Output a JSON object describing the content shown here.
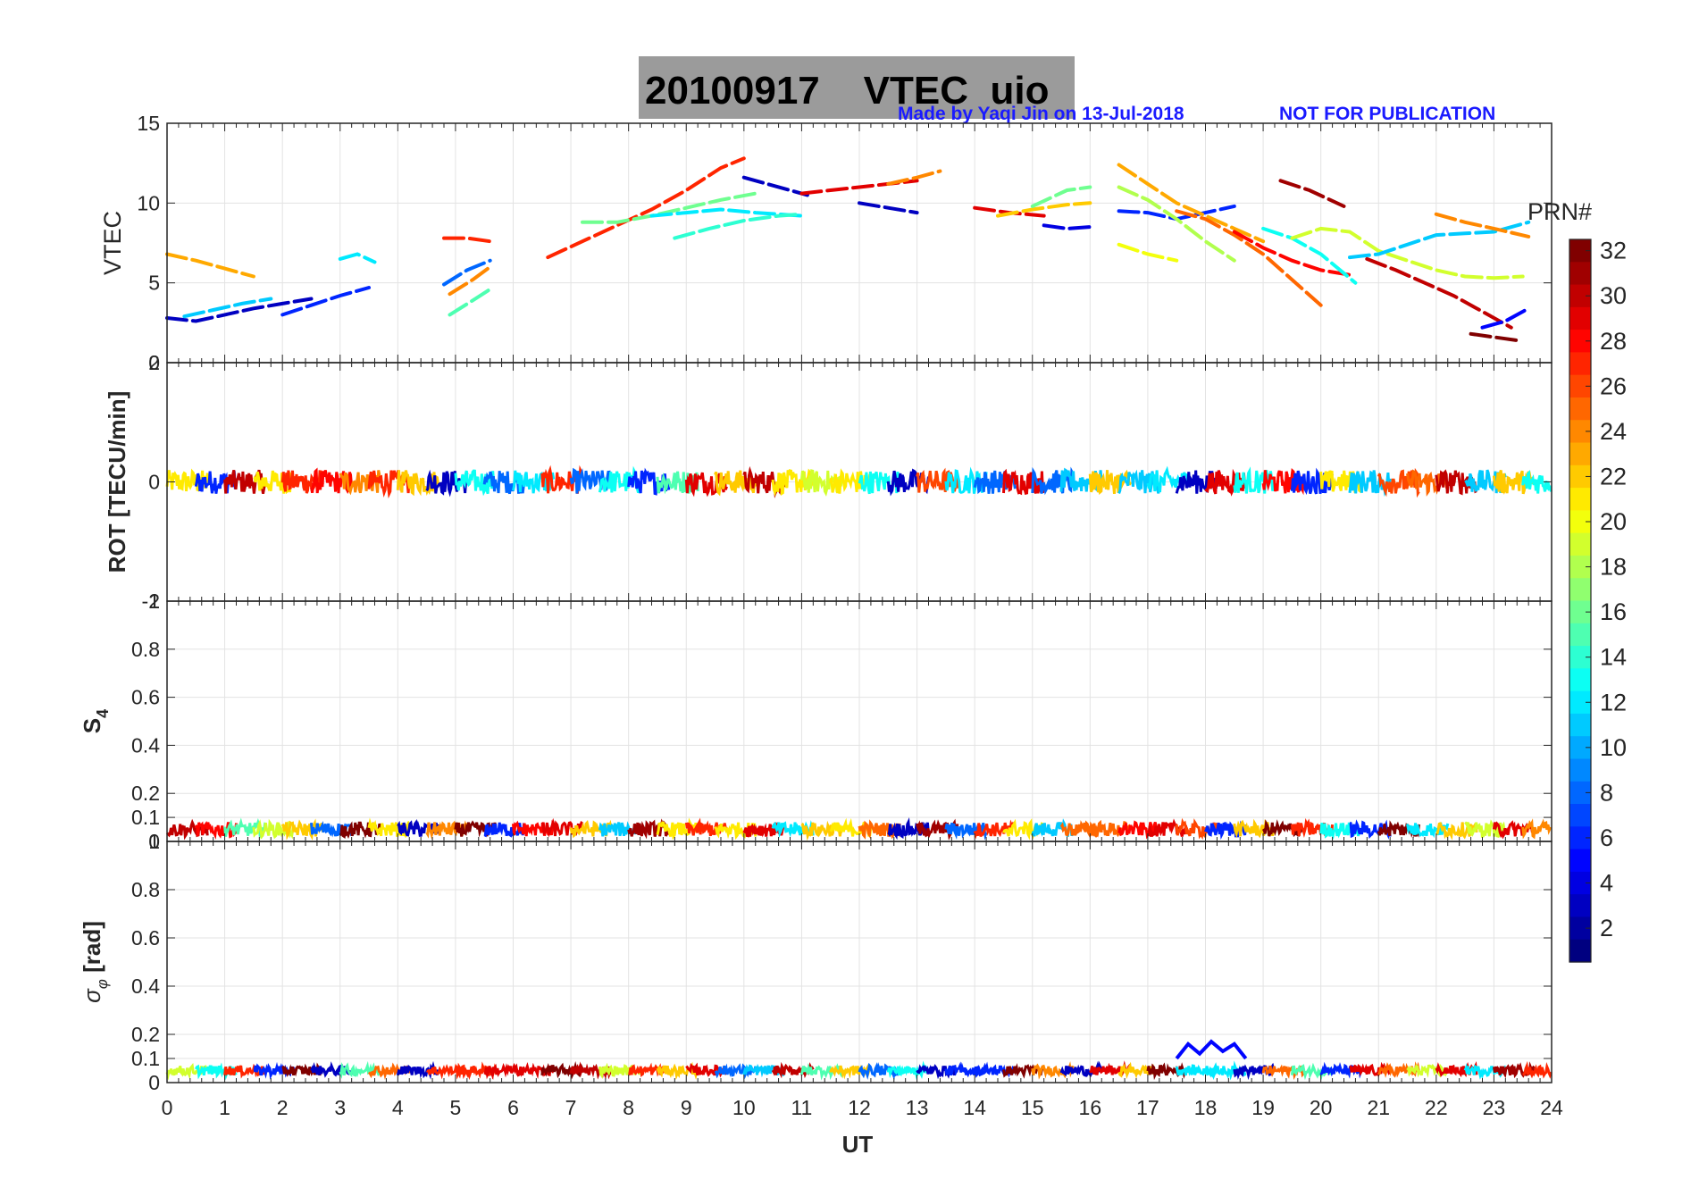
{
  "colors": {
    "note": "#1a1aff",
    "title_box": "#9b9b9b",
    "grid": "#e3e3e3",
    "axis": "#262626"
  },
  "chart_data": [
    {
      "type": "line",
      "title": "20100917    VTEC  uio",
      "annotation": "Made by Yaqi Jin on 13-Jul-2018",
      "watermark": "NOT FOR PUBLICATION",
      "ylabel": "VTEC",
      "xlim": [
        0,
        24
      ],
      "ylim": [
        0,
        15
      ],
      "yticks": [
        "0",
        "5",
        "10",
        "15"
      ],
      "series_note": "Vertical TEC arcs per GPS satellite (PRN), colored by PRN",
      "series": [
        {
          "prn": 3,
          "x": [
            0.0,
            0.5,
            1.0,
            1.5,
            2.0,
            2.5
          ],
          "y": [
            2.8,
            2.6,
            3.0,
            3.4,
            3.7,
            4.0
          ]
        },
        {
          "prn": 11,
          "x": [
            0.3,
            0.8,
            1.3,
            1.8
          ],
          "y": [
            2.9,
            3.3,
            3.7,
            4.0
          ]
        },
        {
          "prn": 23,
          "x": [
            0.0,
            0.5,
            1.0,
            1.5
          ],
          "y": [
            6.8,
            6.4,
            5.9,
            5.4
          ]
        },
        {
          "prn": 6,
          "x": [
            2.0,
            2.5,
            3.0,
            3.5
          ],
          "y": [
            3.0,
            3.6,
            4.2,
            4.7
          ]
        },
        {
          "prn": 12,
          "x": [
            3.0,
            3.3,
            3.6
          ],
          "y": [
            6.5,
            6.8,
            6.3
          ]
        },
        {
          "prn": 8,
          "x": [
            4.8,
            5.2,
            5.6
          ],
          "y": [
            4.9,
            5.8,
            6.4
          ]
        },
        {
          "prn": 27,
          "x": [
            4.8,
            5.2,
            5.6
          ],
          "y": [
            7.8,
            7.8,
            7.6
          ]
        },
        {
          "prn": 24,
          "x": [
            4.9,
            5.3,
            5.6
          ],
          "y": [
            4.3,
            5.2,
            6.0
          ]
        },
        {
          "prn": 15,
          "x": [
            4.9,
            5.3,
            5.6
          ],
          "y": [
            3.0,
            3.9,
            4.6
          ]
        },
        {
          "prn": 27,
          "x": [
            6.6,
            7.2,
            7.8,
            8.4,
            9.0,
            9.6,
            10.0
          ],
          "y": [
            6.6,
            7.6,
            8.6,
            9.6,
            10.8,
            12.2,
            12.8
          ]
        },
        {
          "prn": 16,
          "x": [
            7.2,
            7.8,
            8.4,
            9.0,
            9.6,
            10.2
          ],
          "y": [
            8.8,
            8.8,
            9.2,
            9.7,
            10.2,
            10.6
          ]
        },
        {
          "prn": 12,
          "x": [
            8.4,
            9.0,
            9.6,
            10.2,
            11.0
          ],
          "y": [
            9.2,
            9.4,
            9.6,
            9.4,
            9.2
          ]
        },
        {
          "prn": 14,
          "x": [
            8.8,
            9.4,
            10.0,
            10.6,
            11.0
          ],
          "y": [
            7.8,
            8.4,
            8.9,
            9.2,
            9.3
          ]
        },
        {
          "prn": 3,
          "x": [
            10.0,
            10.4,
            10.8,
            11.1
          ],
          "y": [
            11.6,
            11.2,
            10.8,
            10.5
          ]
        },
        {
          "prn": 29,
          "x": [
            11.0,
            11.5,
            12.0,
            12.5,
            13.0
          ],
          "y": [
            10.6,
            10.8,
            11.0,
            11.2,
            11.4
          ]
        },
        {
          "prn": 24,
          "x": [
            12.5,
            13.0,
            13.4
          ],
          "y": [
            11.2,
            11.6,
            12.0
          ]
        },
        {
          "prn": 3,
          "x": [
            12.0,
            12.5,
            13.0
          ],
          "y": [
            10.0,
            9.7,
            9.4
          ]
        },
        {
          "prn": 29,
          "x": [
            14.0,
            14.6,
            15.2
          ],
          "y": [
            9.7,
            9.4,
            9.2
          ]
        },
        {
          "prn": 22,
          "x": [
            14.4,
            15.0,
            15.6,
            16.0
          ],
          "y": [
            9.2,
            9.6,
            9.9,
            10.0
          ]
        },
        {
          "prn": 16,
          "x": [
            15.0,
            15.6,
            16.0
          ],
          "y": [
            9.8,
            10.8,
            11.0
          ]
        },
        {
          "prn": 4,
          "x": [
            15.2,
            15.6,
            16.0
          ],
          "y": [
            8.6,
            8.4,
            8.5
          ]
        },
        {
          "prn": 6,
          "x": [
            16.5,
            17.0,
            17.5,
            18.0,
            18.5
          ],
          "y": [
            9.5,
            9.4,
            9.0,
            9.4,
            9.8
          ]
        },
        {
          "prn": 23,
          "x": [
            16.5,
            17.0,
            17.5,
            18.0,
            18.5,
            19.0
          ],
          "y": [
            12.4,
            11.2,
            10.0,
            9.2,
            8.4,
            7.6
          ]
        },
        {
          "prn": 20,
          "x": [
            16.5,
            17.0,
            17.5
          ],
          "y": [
            7.4,
            6.8,
            6.4
          ]
        },
        {
          "prn": 18,
          "x": [
            16.5,
            17.0,
            17.5,
            18.0,
            18.5
          ],
          "y": [
            11.0,
            10.2,
            9.0,
            7.6,
            6.4
          ]
        },
        {
          "prn": 25,
          "x": [
            17.5,
            18.0,
            18.5,
            19.0,
            19.5,
            20.0
          ],
          "y": [
            9.5,
            9.0,
            8.0,
            6.8,
            5.2,
            3.6
          ]
        },
        {
          "prn": 28,
          "x": [
            18.5,
            19.0,
            19.5,
            20.0,
            20.5
          ],
          "y": [
            8.2,
            7.2,
            6.4,
            5.8,
            5.5
          ]
        },
        {
          "prn": 31,
          "x": [
            19.3,
            19.8,
            20.4
          ],
          "y": [
            11.4,
            10.8,
            9.8
          ]
        },
        {
          "prn": 13,
          "x": [
            19.0,
            19.5,
            20.0,
            20.6
          ],
          "y": [
            8.4,
            7.8,
            6.8,
            5.0
          ]
        },
        {
          "prn": 19,
          "x": [
            19.5,
            20.0,
            20.5,
            21.0,
            21.5,
            22.0,
            22.5,
            23.0,
            23.5
          ],
          "y": [
            7.8,
            8.4,
            8.2,
            7.0,
            6.4,
            5.8,
            5.4,
            5.3,
            5.4
          ]
        },
        {
          "prn": 11,
          "x": [
            20.5,
            21.0,
            21.5,
            22.0,
            22.5,
            23.0,
            23.6
          ],
          "y": [
            6.6,
            6.8,
            7.4,
            8.0,
            8.1,
            8.2,
            8.8
          ]
        },
        {
          "prn": 30,
          "x": [
            20.8,
            21.3,
            21.8,
            22.3,
            22.8,
            23.3
          ],
          "y": [
            6.5,
            5.8,
            5.0,
            4.2,
            3.2,
            2.2
          ]
        },
        {
          "prn": 24,
          "x": [
            22.0,
            22.5,
            23.0,
            23.6
          ],
          "y": [
            9.3,
            8.8,
            8.4,
            7.9
          ]
        },
        {
          "prn": 32,
          "x": [
            22.6,
            23.0,
            23.4
          ],
          "y": [
            1.8,
            1.6,
            1.4
          ]
        },
        {
          "prn": 5,
          "x": [
            22.8,
            23.2,
            23.6
          ],
          "y": [
            2.2,
            2.6,
            3.4
          ]
        }
      ]
    },
    {
      "type": "line",
      "ylabel": "ROT [TECU/min]",
      "xlim": [
        0,
        24
      ],
      "ylim": [
        -2,
        2
      ],
      "yticks": [
        "-2",
        "0",
        "2"
      ],
      "series_note": "Rate of TEC; dense noise band about 0 (~±0.2) for all PRNs",
      "band": {
        "center": 0.0,
        "amplitude": 0.2
      }
    },
    {
      "type": "line",
      "ylabel_main": "S",
      "ylabel_sub": "4",
      "xlim": [
        0,
        24
      ],
      "ylim": [
        0,
        1
      ],
      "yticks": [
        "0",
        "0.1",
        "0.2",
        "0.4",
        "0.6",
        "0.8",
        "1"
      ],
      "series_note": "Amplitude scintillation index, ~0.03–0.08 all day",
      "band": {
        "center": 0.05,
        "amplitude": 0.03
      }
    },
    {
      "type": "line",
      "ylabel_main": "σ",
      "ylabel_sub": "φ",
      "ylabel_unit": " [rad]",
      "xlim": [
        0,
        24
      ],
      "ylim": [
        0,
        1
      ],
      "yticks": [
        "0",
        "0.1",
        "0.2",
        "0.4",
        "0.6",
        "0.8",
        "1"
      ],
      "series_note": "Phase scintillation index, ~0.04; enhancement to ~0.16 near 17.5–18.7 UT (PRN 5)",
      "band": {
        "center": 0.05,
        "amplitude": 0.02
      },
      "event": {
        "prn": 5,
        "x": [
          17.5,
          17.7,
          17.9,
          18.1,
          18.3,
          18.5,
          18.7
        ],
        "y": [
          0.1,
          0.16,
          0.12,
          0.17,
          0.13,
          0.16,
          0.1
        ]
      }
    }
  ],
  "xaxis": {
    "xlabel": "UT",
    "ticks": [
      "0",
      "1",
      "2",
      "3",
      "4",
      "5",
      "6",
      "7",
      "8",
      "9",
      "10",
      "11",
      "12",
      "13",
      "14",
      "15",
      "16",
      "17",
      "18",
      "19",
      "20",
      "21",
      "22",
      "23",
      "24"
    ]
  },
  "colorbar": {
    "label": "PRN#",
    "range": [
      1,
      32
    ],
    "ticks": [
      "2",
      "4",
      "6",
      "8",
      "10",
      "12",
      "14",
      "16",
      "18",
      "20",
      "22",
      "24",
      "26",
      "28",
      "30",
      "32"
    ]
  }
}
